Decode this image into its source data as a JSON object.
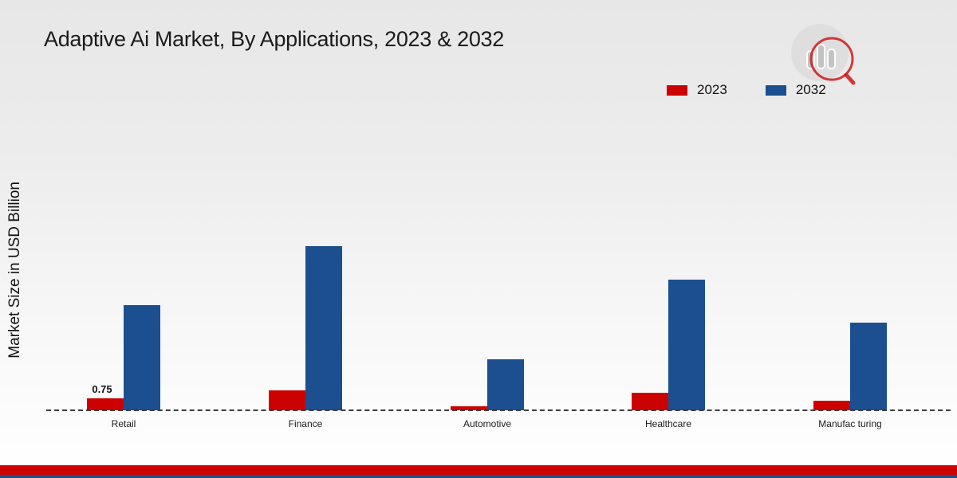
{
  "chart_data": {
    "type": "bar",
    "title": "Adaptive Ai Market, By Applications, 2023 & 2032",
    "ylabel": "Market Size in USD Billion",
    "xlabel": "",
    "categories": [
      "Retail",
      "Finance",
      "Automotive",
      "Healthcare",
      "Manufac turing"
    ],
    "series": [
      {
        "name": "2023",
        "color": "#cc0202",
        "values": [
          0.75,
          1.25,
          0.25,
          1.1,
          0.6
        ],
        "data_labels": [
          "0.75",
          "",
          "",
          "",
          ""
        ]
      },
      {
        "name": "2032",
        "color": "#1b4f8f",
        "values": [
          6.6,
          10.3,
          3.2,
          8.2,
          5.5
        ],
        "data_labels": [
          "",
          "",
          "",
          "",
          ""
        ]
      }
    ],
    "ylim": [
      0,
      11
    ],
    "grid": "dashed-baseline-only",
    "legend_position": "top-right",
    "axis_baseline_value": 0
  },
  "branding": {
    "logo_icon": "bar-chart-magnifier-logo",
    "accent_red": "#cc0202",
    "accent_blue": "#1b4f8f"
  }
}
